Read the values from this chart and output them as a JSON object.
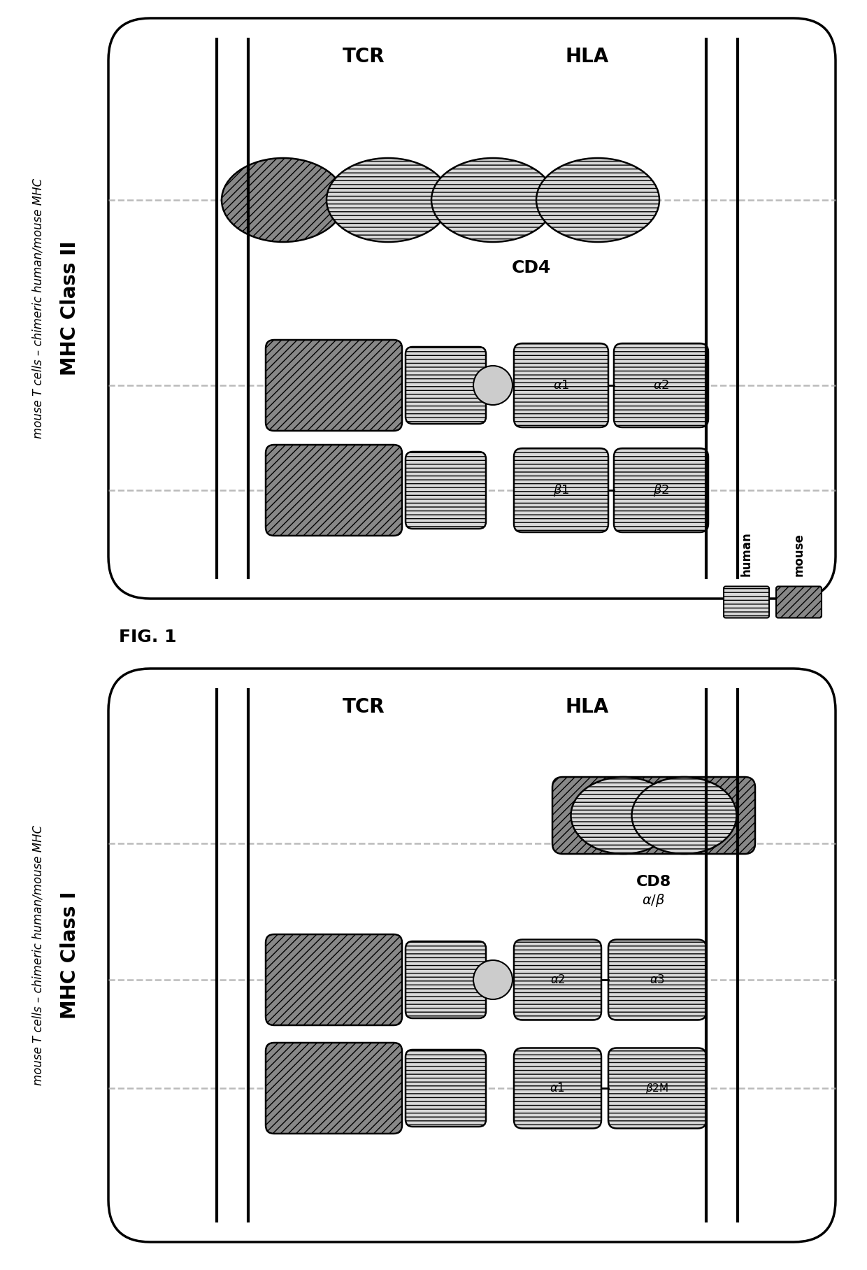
{
  "fig_width": 12.4,
  "fig_height": 18.16,
  "bg_color": "#ffffff",
  "mouse_fc": "#888888",
  "mouse_hatch": "///",
  "human_fc": "#d8d8d8",
  "human_hatch": "---",
  "peptide_fc": "#cccccc",
  "panel_lw": 2.5,
  "bar_lw": 3.0,
  "membrane_color": "#aaaaaa",
  "fig1_label": "FIG. 1",
  "p1_title": "MHC Class II",
  "p1_subtitle": "mouse T cells – chimeric human/mouse MHC",
  "p2_title": "MHC Class I",
  "p2_subtitle": "mouse T cells – chimeric human/mouse MHC",
  "legend_human": "human",
  "legend_mouse": "mouse"
}
